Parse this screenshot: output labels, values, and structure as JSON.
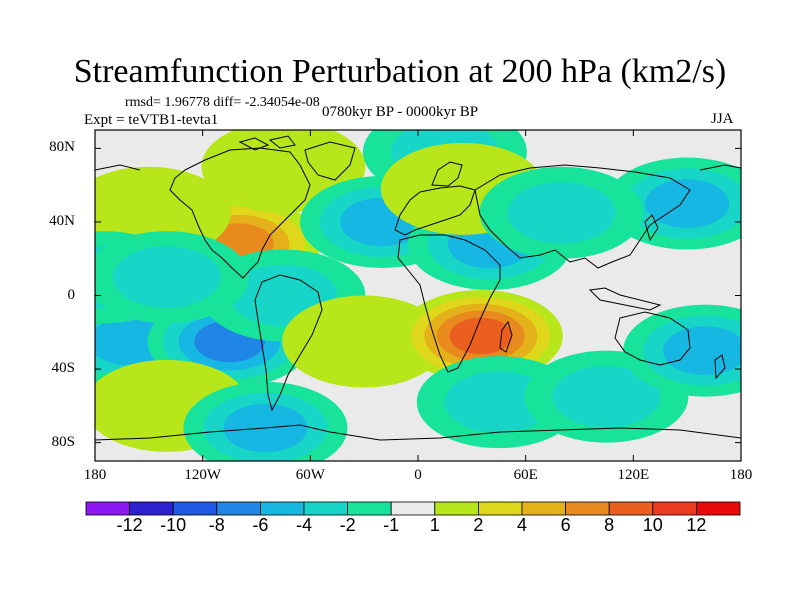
{
  "title": "Streamfunction Perturbation at 200 hPa (km2/s)",
  "stats": "rmsd= 1.96778 diff= -2.34054e-08",
  "experiment": "Expt = teVTB1-tevta1",
  "period": "0780kyr BP - 0000kyr BP",
  "season": "JJA",
  "map": {
    "lat_ticks": [
      "80N",
      "40N",
      "0",
      "40S",
      "80S"
    ],
    "lon_ticks": [
      "180",
      "120W",
      "60W",
      "0",
      "60E",
      "120E",
      "180"
    ],
    "anomalies": [
      {
        "name": "north-america-high",
        "lon": -100,
        "lat": 28,
        "level": 8
      },
      {
        "name": "north-pacific-rise",
        "lon": -150,
        "lat": 45,
        "level": 2
      },
      {
        "name": "arctic-canada-high",
        "lon": -75,
        "lat": 70,
        "level": 2
      },
      {
        "name": "north-atlantic-low",
        "lon": -20,
        "lat": 40,
        "level": -4
      },
      {
        "name": "middle-east-low",
        "lon": 40,
        "lat": 28,
        "level": -4
      },
      {
        "name": "siberia-low",
        "lon": 15,
        "lat": 78,
        "level": -2
      },
      {
        "name": "europe-high",
        "lon": 25,
        "lat": 58,
        "level": 2
      },
      {
        "name": "east-asia-low",
        "lon": 150,
        "lat": 50,
        "level": -4
      },
      {
        "name": "central-asia-low",
        "lon": 80,
        "lat": 45,
        "level": -2
      },
      {
        "name": "south-pacific-low",
        "lon": -160,
        "lat": -25,
        "level": -4
      },
      {
        "name": "south-east-pacific-low",
        "lon": -105,
        "lat": -25,
        "level": -6
      },
      {
        "name": "south-america-west-low",
        "lon": -75,
        "lat": 0,
        "level": -2
      },
      {
        "name": "south-atlantic-high",
        "lon": -30,
        "lat": -25,
        "level": 2
      },
      {
        "name": "southern-africa-high",
        "lon": 35,
        "lat": -22,
        "level": 10
      },
      {
        "name": "indian-ocean-low",
        "lon": 45,
        "lat": -58,
        "level": -2
      },
      {
        "name": "south-indian-low",
        "lon": 105,
        "lat": -55,
        "level": -2
      },
      {
        "name": "australia-southeast-low",
        "lon": 160,
        "lat": -30,
        "level": -4
      },
      {
        "name": "pacific-southwest-high",
        "lon": -140,
        "lat": -60,
        "level": 2
      },
      {
        "name": "antarctic-pacific-low",
        "lon": -85,
        "lat": -72,
        "level": -4
      },
      {
        "name": "western-pacific-low",
        "lon": -175,
        "lat": 10,
        "level": -2
      },
      {
        "name": "equatorial-pacific-low",
        "lon": -140,
        "lat": 10,
        "level": -2
      }
    ]
  },
  "colorbar": {
    "labels": [
      "-12",
      "-10",
      "-8",
      "-6",
      "-4",
      "-2",
      "-1",
      "1",
      "2",
      "4",
      "6",
      "8",
      "10",
      "12"
    ],
    "colors": [
      "#8d18f1",
      "#2c20d1",
      "#1f5ae6",
      "#1f86e6",
      "#16b8e3",
      "#17d6c8",
      "#17e39a",
      "#eaeaea",
      "#b7e61a",
      "#dfd81a",
      "#e4b11a",
      "#e88a1e",
      "#ea5e1e",
      "#ec3a1e",
      "#e90b0b"
    ]
  }
}
